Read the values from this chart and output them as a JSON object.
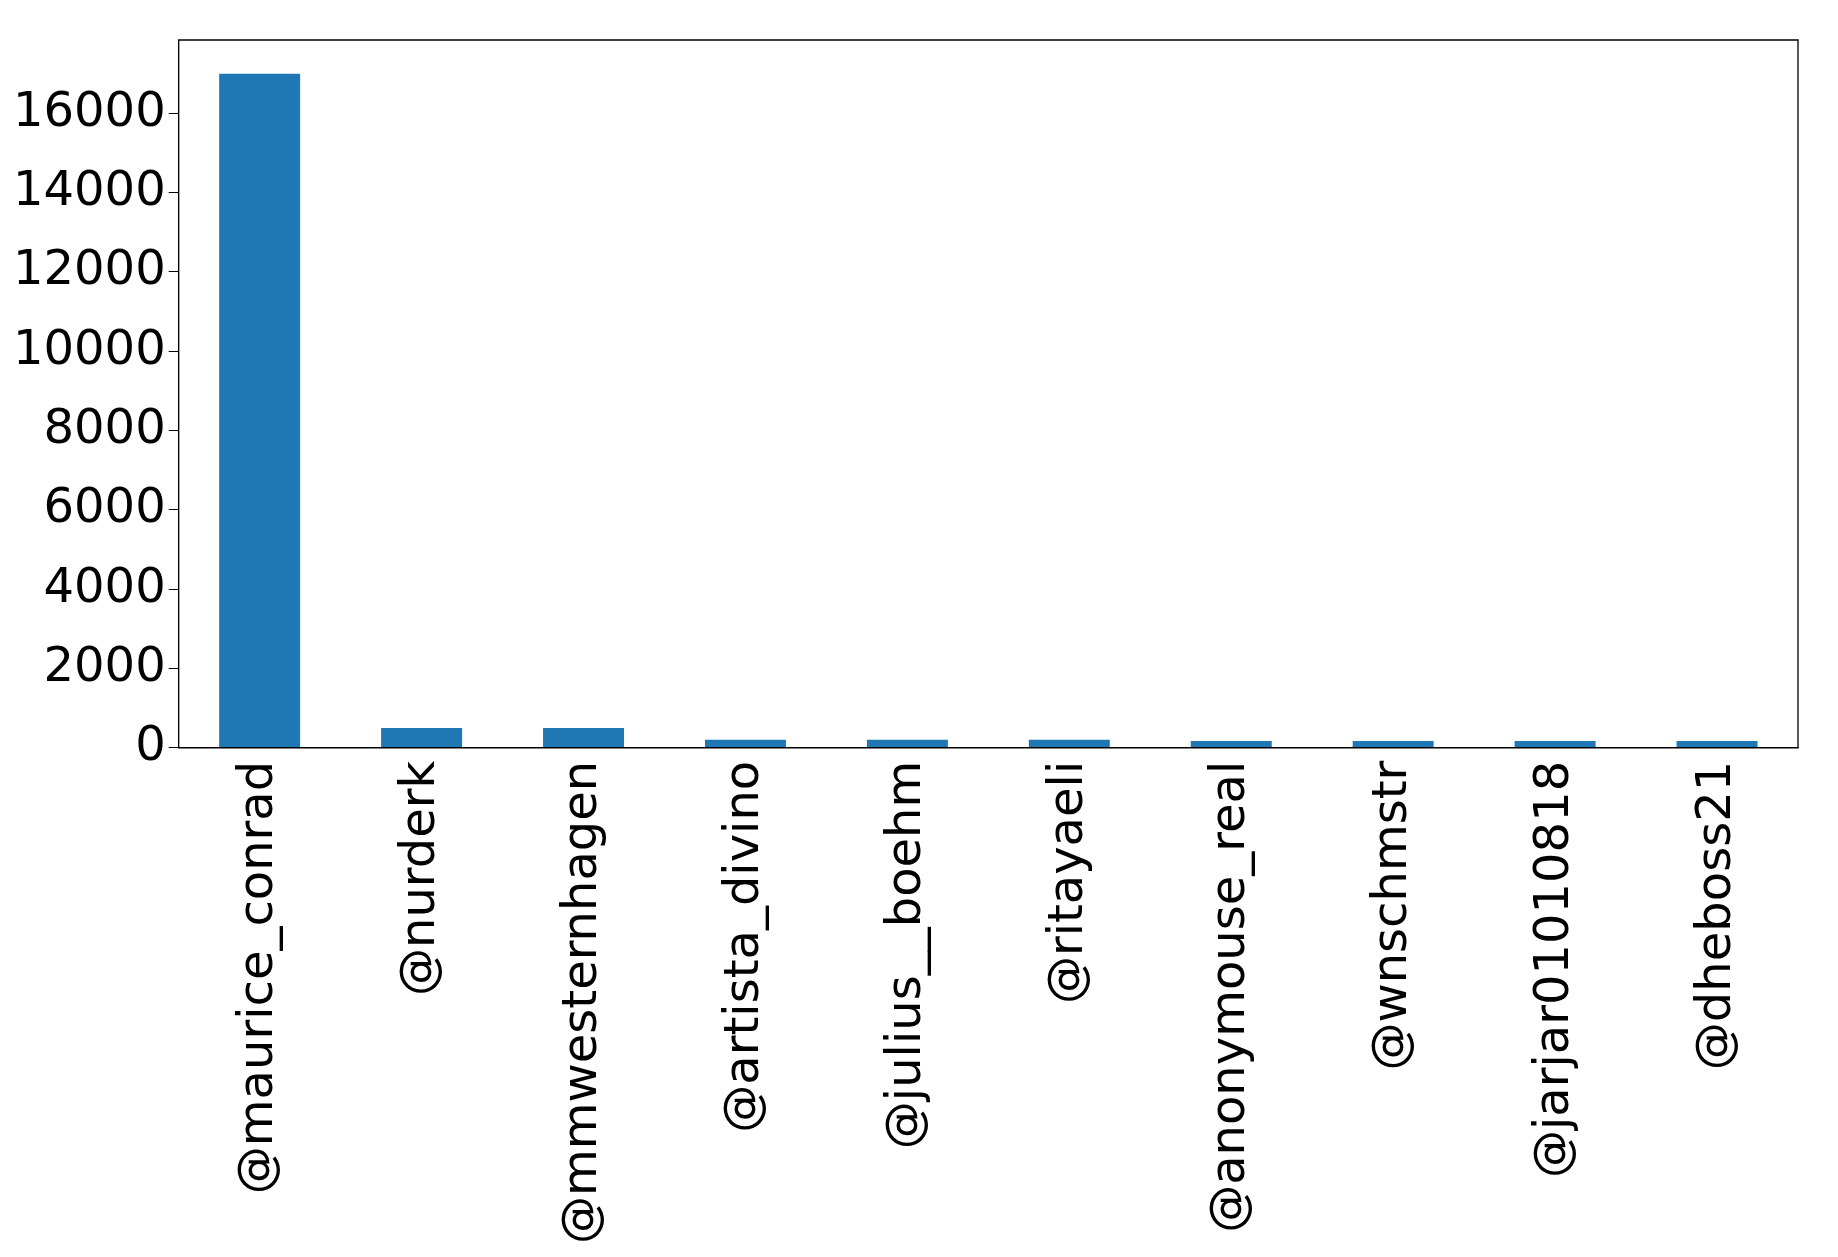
{
  "chart_data": {
    "type": "bar",
    "categories": [
      "@maurice_conrad",
      "@nurderk",
      "@mmwesternhagen",
      "@artista_divino",
      "@julius__boehm",
      "@ritayaeli",
      "@anonymouse_real",
      "@wnschmstr",
      "@jarjar01010818",
      "@dheboss21"
    ],
    "values": [
      17000,
      500,
      500,
      200,
      200,
      200,
      170,
      170,
      170,
      170
    ],
    "color": "#1f77b4",
    "ylim": [
      0,
      17850
    ],
    "yticks": [
      0,
      2000,
      4000,
      6000,
      8000,
      10000,
      12000,
      14000,
      16000
    ],
    "grid": false,
    "legend": false
  }
}
